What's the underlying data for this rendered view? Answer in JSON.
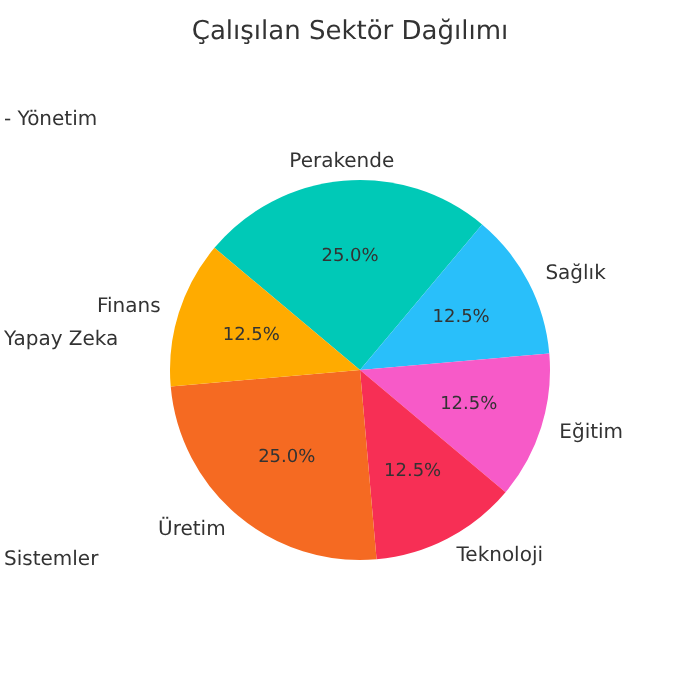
{
  "chart_data": {
    "type": "pie",
    "title": "Çalışılan Sektör Dağılımı",
    "categories": [
      "Perakende",
      "Sağlık",
      "Eğitim",
      "Teknoloji",
      "Üretim",
      "Finans"
    ],
    "values": [
      25,
      12.5,
      12.5,
      12.5,
      25,
      12.5
    ],
    "value_labels": [
      "25.0%",
      "12.5%",
      "12.5%",
      "12.5%",
      "25.0%",
      "12.5%"
    ],
    "colors": [
      "#00c9b7",
      "#29bffa",
      "#f75ac8",
      "#f72f55",
      "#f56a22",
      "#ffab00"
    ],
    "annotations": [
      "- Yönetim",
      "Yapay Zeka",
      "Sistemler"
    ]
  }
}
